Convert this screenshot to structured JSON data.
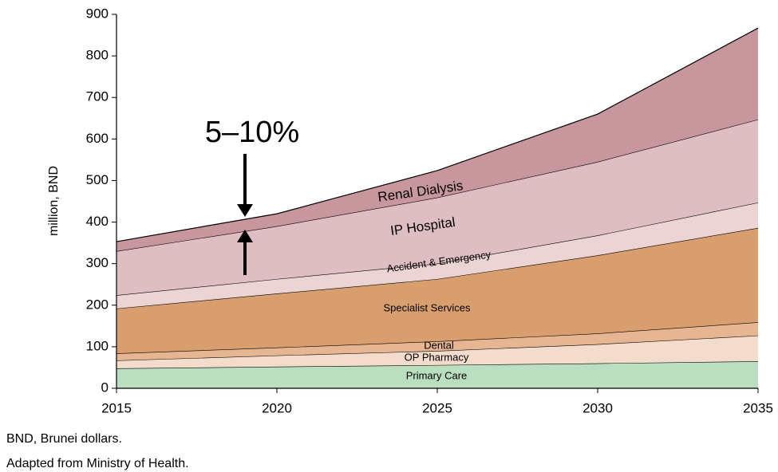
{
  "chart_data": {
    "type": "stacked_area",
    "ylabel": "million, BND",
    "x": [
      2015,
      2020,
      2025,
      2030,
      2035
    ],
    "xlim": [
      2015,
      2035
    ],
    "xticks": [
      2015,
      2020,
      2025,
      2030,
      2035
    ],
    "ylim": [
      0,
      900
    ],
    "yticks": [
      0,
      100,
      200,
      300,
      400,
      500,
      600,
      700,
      800,
      900
    ],
    "series": [
      {
        "name": "Primary Care",
        "color": "#b9dfc0",
        "values": [
          48,
          52,
          56,
          60,
          65
        ]
      },
      {
        "name": "OP Pharmacy",
        "color": "#f3dccb",
        "values": [
          19,
          27,
          34,
          46,
          62
        ]
      },
      {
        "name": "Dental",
        "color": "#e6b592",
        "values": [
          17,
          19,
          23,
          26,
          32
        ]
      },
      {
        "name": "Specialist Services",
        "color": "#d89e6d",
        "values": [
          108,
          130,
          150,
          188,
          227
        ]
      },
      {
        "name": "Accident & Emergency",
        "color": "#ecd3d4",
        "values": [
          32,
          35,
          37,
          48,
          61
        ]
      },
      {
        "name": "IP Hospital",
        "color": "#dfbec3",
        "values": [
          106,
          127,
          159,
          177,
          200
        ]
      },
      {
        "name": "Renal Dialysis",
        "color": "#c8979e",
        "values": [
          23,
          30,
          65,
          115,
          220
        ]
      }
    ],
    "annotation": "5–10%",
    "footnotes": [
      "BND, Brunei dollars.",
      "Adapted from Ministry of Health."
    ]
  }
}
